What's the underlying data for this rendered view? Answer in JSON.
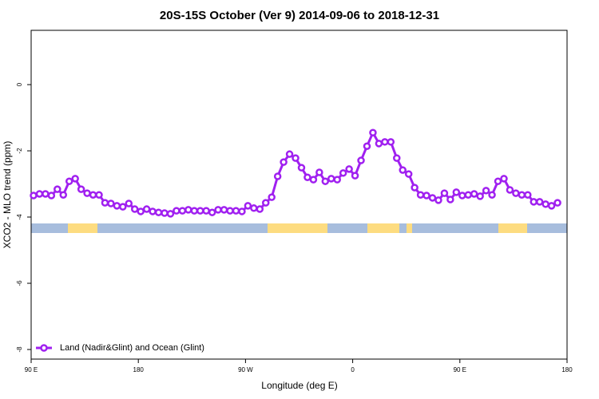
{
  "chart_data": {
    "type": "line",
    "title": "20S-15S October (Ver 9)   2014-09-06 to 2018-12-31",
    "xlabel": "Longitude (deg E)",
    "ylabel": "XCO2 - MLO trend (ppm)",
    "xlim": [
      90,
      540
    ],
    "ylim": [
      -8.29,
      1.64
    ],
    "xticks": [
      {
        "value": 90,
        "label": "90 E"
      },
      180,
      {
        "value": 270,
        "label": "90 W"
      },
      {
        "value": 360,
        "label": "0"
      },
      {
        "value": 450,
        "label": "90 E"
      },
      {
        "value": 540,
        "label": "180"
      }
    ],
    "yticks": [
      0,
      -2,
      -4,
      -6,
      -8
    ],
    "legend": "bottom-left",
    "x": [
      92,
      97,
      102,
      107,
      112,
      117,
      122,
      127,
      132,
      137,
      142,
      147,
      152,
      157,
      162,
      167,
      172,
      177,
      182,
      187,
      192,
      197,
      202,
      207,
      212,
      217,
      222,
      227,
      232,
      237,
      242,
      247,
      252,
      257,
      262,
      267,
      272,
      277,
      282,
      287,
      292,
      297,
      302,
      307,
      312,
      317,
      322,
      327,
      332,
      337,
      342,
      347,
      352,
      357,
      362,
      367,
      372,
      377,
      382,
      387,
      392,
      397,
      402,
      407,
      412,
      417,
      422,
      427,
      432,
      437,
      442,
      447,
      452,
      457,
      462,
      467,
      472,
      477,
      482,
      487,
      492,
      497,
      502,
      507,
      512,
      517,
      522,
      527,
      532
    ],
    "series": [
      {
        "name": "Land (Nadir&Glint) and Ocean (Glint)",
        "color": "#a020f0",
        "values": [
          -3.35,
          -3.3,
          -3.3,
          -3.35,
          -3.16,
          -3.33,
          -2.92,
          -2.84,
          -3.16,
          -3.28,
          -3.33,
          -3.33,
          -3.57,
          -3.59,
          -3.66,
          -3.69,
          -3.59,
          -3.76,
          -3.83,
          -3.76,
          -3.83,
          -3.86,
          -3.88,
          -3.9,
          -3.81,
          -3.81,
          -3.78,
          -3.81,
          -3.81,
          -3.81,
          -3.86,
          -3.78,
          -3.78,
          -3.81,
          -3.81,
          -3.83,
          -3.66,
          -3.73,
          -3.76,
          -3.57,
          -3.4,
          -2.77,
          -2.34,
          -2.1,
          -2.22,
          -2.51,
          -2.8,
          -2.87,
          -2.65,
          -2.92,
          -2.84,
          -2.87,
          -2.67,
          -2.55,
          -2.75,
          -2.29,
          -1.86,
          -1.45,
          -1.78,
          -1.73,
          -1.73,
          -2.22,
          -2.58,
          -2.7,
          -3.11,
          -3.33,
          -3.35,
          -3.42,
          -3.49,
          -3.28,
          -3.47,
          -3.25,
          -3.35,
          -3.33,
          -3.3,
          -3.37,
          -3.2,
          -3.33,
          -2.92,
          -2.84,
          -3.18,
          -3.28,
          -3.33,
          -3.33,
          -3.54,
          -3.54,
          -3.61,
          -3.66,
          -3.57
        ]
      }
    ]
  }
}
